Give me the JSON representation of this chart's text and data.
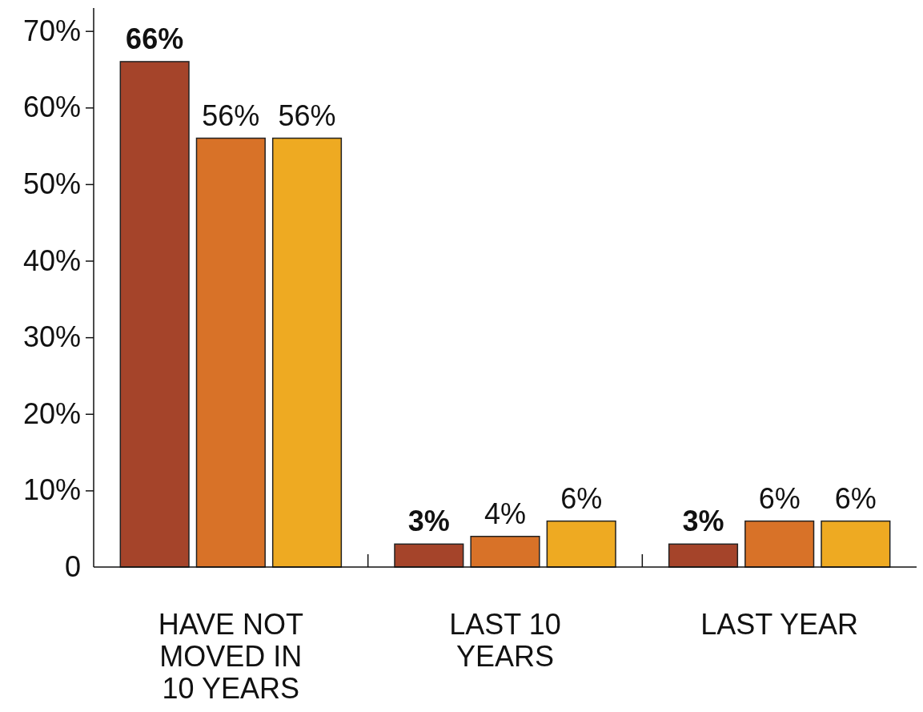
{
  "chart_data": {
    "type": "bar",
    "categories": [
      "HAVE NOT MOVED IN 10 YEARS",
      "LAST 10 YEARS",
      "LAST YEAR"
    ],
    "series": [
      {
        "color": "#a5442a",
        "values": [
          66,
          3,
          3
        ],
        "value_labels": [
          "66%",
          "3%",
          "3%"
        ]
      },
      {
        "color": "#d87228",
        "values": [
          56,
          4,
          6
        ],
        "value_labels": [
          "56%",
          "4%",
          "6%"
        ]
      },
      {
        "color": "#eeaa22",
        "values": [
          56,
          6,
          6
        ],
        "value_labels": [
          "56%",
          "6%",
          "6%"
        ]
      }
    ],
    "ylim": [
      0,
      73
    ],
    "yticks": [
      0,
      {
        "value": 10,
        "label": "10%"
      },
      {
        "value": 20,
        "label": "20%"
      },
      {
        "value": 30,
        "label": "30%"
      },
      {
        "value": 40,
        "label": "40%"
      },
      {
        "value": 50,
        "label": "50%"
      },
      {
        "value": 60,
        "label": "60%"
      },
      {
        "value": 70,
        "label": "70%"
      }
    ],
    "grid": false
  }
}
